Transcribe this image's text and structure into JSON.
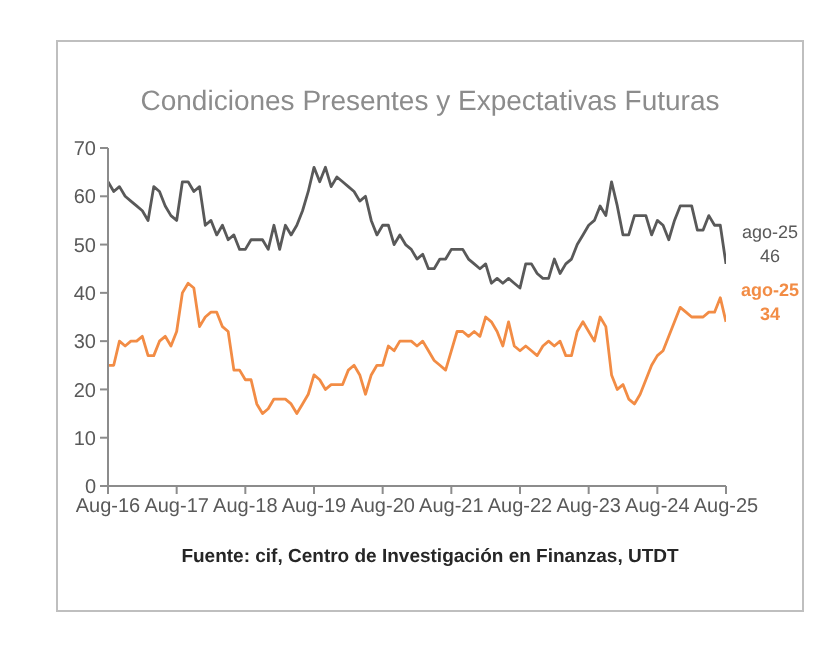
{
  "chart_data": {
    "type": "line",
    "title": "Condiciones Presentes y Expectativas Futuras",
    "x": [
      "2016-08",
      "2016-09",
      "2016-10",
      "2016-11",
      "2016-12",
      "2017-01",
      "2017-02",
      "2017-03",
      "2017-04",
      "2017-05",
      "2017-06",
      "2017-07",
      "2017-08",
      "2017-09",
      "2017-10",
      "2017-11",
      "2017-12",
      "2018-01",
      "2018-02",
      "2018-03",
      "2018-04",
      "2018-05",
      "2018-06",
      "2018-07",
      "2018-08",
      "2018-09",
      "2018-10",
      "2018-11",
      "2018-12",
      "2019-01",
      "2019-02",
      "2019-03",
      "2019-04",
      "2019-05",
      "2019-06",
      "2019-07",
      "2019-08",
      "2019-09",
      "2019-10",
      "2019-11",
      "2019-12",
      "2020-01",
      "2020-02",
      "2020-03",
      "2020-04",
      "2020-05",
      "2020-06",
      "2020-07",
      "2020-08",
      "2020-09",
      "2020-10",
      "2020-11",
      "2020-12",
      "2021-01",
      "2021-02",
      "2021-03",
      "2021-04",
      "2021-05",
      "2021-06",
      "2021-07",
      "2021-08",
      "2021-09",
      "2021-10",
      "2021-11",
      "2021-12",
      "2022-01",
      "2022-02",
      "2022-03",
      "2022-04",
      "2022-05",
      "2022-06",
      "2022-07",
      "2022-08",
      "2022-09",
      "2022-10",
      "2022-11",
      "2022-12",
      "2023-01",
      "2023-02",
      "2023-03",
      "2023-04",
      "2023-05",
      "2023-06",
      "2023-07",
      "2023-08",
      "2023-09",
      "2023-10",
      "2023-11",
      "2023-12",
      "2024-01",
      "2024-02",
      "2024-03",
      "2024-04",
      "2024-05",
      "2024-06",
      "2024-07",
      "2024-08",
      "2024-09",
      "2024-10",
      "2024-11",
      "2024-12",
      "2025-01",
      "2025-02",
      "2025-03",
      "2025-04",
      "2025-05",
      "2025-06",
      "2025-07",
      "2025-08"
    ],
    "series": [
      {
        "color": "#595959",
        "values": [
          63,
          61,
          62,
          60,
          59,
          58,
          57,
          55,
          62,
          61,
          58,
          56,
          55,
          63,
          63,
          61,
          62,
          54,
          55,
          52,
          54,
          51,
          52,
          49,
          49,
          51,
          51,
          51,
          49,
          54,
          49,
          54,
          52,
          54,
          57,
          61,
          66,
          63,
          66,
          62,
          64,
          63,
          62,
          61,
          59,
          60,
          55,
          52,
          54,
          54,
          50,
          52,
          50,
          49,
          47,
          48,
          45,
          45,
          47,
          47,
          49,
          49,
          49,
          47,
          46,
          45,
          46,
          42,
          43,
          42,
          43,
          42,
          41,
          46,
          46,
          44,
          43,
          43,
          47,
          44,
          46,
          47,
          50,
          52,
          54,
          55,
          58,
          56,
          63,
          58,
          52,
          52,
          56,
          56,
          56,
          52,
          55,
          54,
          51,
          55,
          58,
          58,
          58,
          53,
          53,
          56,
          54,
          54,
          46
        ]
      },
      {
        "color": "#f28c45",
        "values": [
          25,
          25,
          30,
          29,
          30,
          30,
          31,
          27,
          27,
          30,
          31,
          29,
          32,
          40,
          42,
          41,
          33,
          35,
          36,
          36,
          33,
          32,
          24,
          24,
          22,
          22,
          17,
          15,
          16,
          18,
          18,
          18,
          17,
          15,
          17,
          19,
          23,
          22,
          20,
          21,
          21,
          21,
          24,
          25,
          23,
          19,
          23,
          25,
          25,
          29,
          28,
          30,
          30,
          30,
          29,
          30,
          28,
          26,
          25,
          24,
          28,
          32,
          32,
          31,
          32,
          31,
          35,
          34,
          32,
          29,
          34,
          29,
          28,
          29,
          28,
          27,
          29,
          30,
          29,
          30,
          27,
          27,
          32,
          34,
          32,
          30,
          35,
          33,
          23,
          20,
          21,
          18,
          17,
          19,
          22,
          25,
          27,
          28,
          31,
          34,
          37,
          36,
          35,
          35,
          35,
          36,
          36,
          39,
          34
        ]
      }
    ],
    "xlim": [
      "2016-08",
      "2025-08"
    ],
    "xticks": [
      {
        "value": "2016-08",
        "label": "Aug-16"
      },
      {
        "value": "2017-08",
        "label": "Aug-17"
      },
      {
        "value": "2018-08",
        "label": "Aug-18"
      },
      {
        "value": "2019-08",
        "label": "Aug-19"
      },
      {
        "value": "2020-08",
        "label": "Aug-20"
      },
      {
        "value": "2021-08",
        "label": "Aug-21"
      },
      {
        "value": "2022-08",
        "label": "Aug-22"
      },
      {
        "value": "2023-08",
        "label": "Aug-23"
      },
      {
        "value": "2024-08",
        "label": "Aug-24"
      },
      {
        "value": "2025-08",
        "label": "Aug-25"
      }
    ],
    "ylim": [
      0,
      70
    ],
    "yticks": [
      0,
      10,
      20,
      30,
      40,
      50,
      60,
      70
    ],
    "grid": false,
    "legend": false,
    "marker": "none",
    "line_style": "solid",
    "annotations": [
      {
        "text": "ago-25 46",
        "x": "2025-08",
        "y": 46
      },
      {
        "text": "ago-25 34",
        "x": "2025-08",
        "y": 34
      },
      "Fuente: cif, Centro de Investigación en Finanzas, UTDT"
    ]
  }
}
